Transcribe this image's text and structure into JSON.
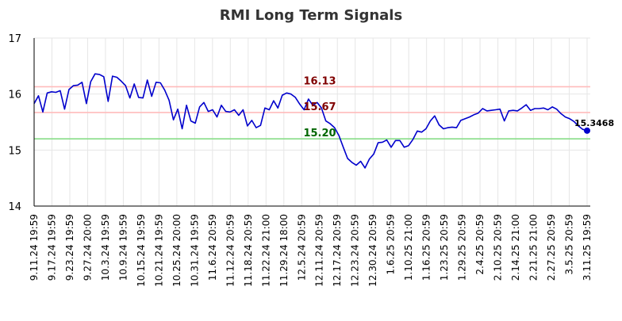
{
  "chart_data": {
    "type": "line",
    "title": "RMI Long Term Signals",
    "xlabel": "",
    "ylabel": "",
    "ylim": [
      14,
      17
    ],
    "yticks": [
      14,
      15,
      16,
      17
    ],
    "grid": true,
    "x_tick_labels": [
      "9.11.24 19:59",
      "9.17.24 19:59",
      "9.23.24 19:59",
      "9.27.24 20:00",
      "10.3.24 19:59",
      "10.9.24 19:59",
      "10.15.24 19:59",
      "10.21.24 19:59",
      "10.25.24 20:00",
      "10.31.24 19:59",
      "11.6.24 20:59",
      "11.12.24 20:59",
      "11.18.24 20:59",
      "11.22.24 21:00",
      "11.29.24 18:00",
      "12.5.24 20:59",
      "12.11.24 20:59",
      "12.17.24 20:59",
      "12.23.24 20:59",
      "12.30.24 20:59",
      "1.6.25 20:59",
      "1.10.25 21:00",
      "1.16.25 20:59",
      "1.23.25 20:59",
      "1.29.25 20:59",
      "2.4.25 20:59",
      "2.10.25 20:59",
      "2.14.25 21:00",
      "2.21.25 21:00",
      "2.27.25 20:59",
      "3.5.25 20:59",
      "3.11.25 19:59"
    ],
    "series": [
      {
        "color": "#0000cc",
        "values": [
          15.83,
          15.97,
          15.68,
          16.02,
          16.04,
          16.03,
          16.06,
          15.73,
          16.08,
          16.15,
          16.16,
          16.21,
          15.83,
          16.22,
          16.36,
          16.35,
          16.31,
          15.87,
          16.32,
          16.3,
          16.23,
          16.15,
          15.93,
          16.18,
          15.94,
          15.93,
          16.25,
          15.96,
          16.21,
          16.2,
          16.07,
          15.89,
          15.54,
          15.73,
          15.38,
          15.8,
          15.52,
          15.48,
          15.77,
          15.85,
          15.69,
          15.72,
          15.59,
          15.8,
          15.69,
          15.68,
          15.72,
          15.62,
          15.72,
          15.43,
          15.53,
          15.4,
          15.44,
          15.75,
          15.72,
          15.88,
          15.75,
          15.98,
          16.02,
          16.0,
          15.94,
          15.82,
          15.72,
          15.91,
          15.8,
          15.85,
          15.75,
          15.52,
          15.47,
          15.4,
          15.26,
          15.05,
          14.85,
          14.78,
          14.73,
          14.8,
          14.68,
          14.84,
          14.93,
          15.13,
          15.14,
          15.18,
          15.05,
          15.17,
          15.17,
          15.05,
          15.08,
          15.19,
          15.34,
          15.32,
          15.38,
          15.52,
          15.61,
          15.45,
          15.38,
          15.4,
          15.41,
          15.4,
          15.53,
          15.56,
          15.59,
          15.63,
          15.66,
          15.74,
          15.7,
          15.71,
          15.72,
          15.73,
          15.52,
          15.7,
          15.71,
          15.7,
          15.75,
          15.81,
          15.71,
          15.74,
          15.74,
          15.75,
          15.72,
          15.77,
          15.73,
          15.65,
          15.59,
          15.56,
          15.51,
          15.43,
          15.37,
          15.3468
        ]
      }
    ],
    "horizontal_lines": [
      {
        "value": 16.13,
        "label": "16.13",
        "line_color": "#ffbbbb",
        "label_color": "#800000"
      },
      {
        "value": 15.67,
        "label": "15.67",
        "line_color": "#ffbbbb",
        "label_color": "#800000"
      },
      {
        "value": 15.2,
        "label": "15.20",
        "line_color": "#88dd88",
        "label_color": "#006600"
      }
    ],
    "last_value_label": "15.3468",
    "colors": {
      "line": "#0000cc",
      "grid": "#e6e6e6",
      "axis": "#000000"
    }
  }
}
